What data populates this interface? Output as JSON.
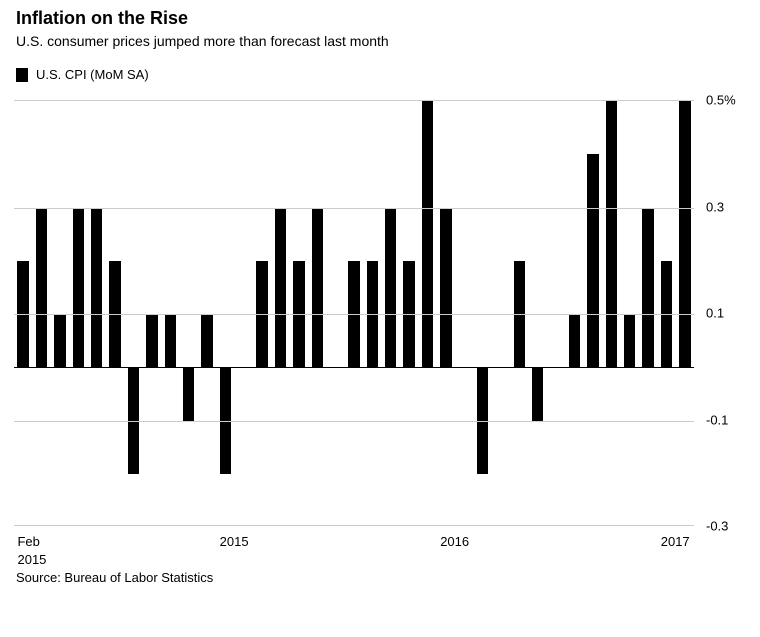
{
  "title": "Inflation on the Rise",
  "subtitle": "U.S. consumer prices jumped more than forecast last month",
  "legend": {
    "swatch_color": "#000000",
    "label": "U.S. CPI (MoM SA)"
  },
  "chart": {
    "type": "bar",
    "bar_color": "#000000",
    "background_color": "#ffffff",
    "grid_color": "#cccccc",
    "zero_color": "#000000",
    "title_fontsize": 18,
    "label_fontsize": 13,
    "y": {
      "min": -0.3,
      "max": 0.5,
      "ticks": [
        {
          "v": 0.5,
          "label": "0.5%"
        },
        {
          "v": 0.3,
          "label": "0.3"
        },
        {
          "v": 0.1,
          "label": "0.1"
        },
        {
          "v": -0.1,
          "label": "-0.1"
        },
        {
          "v": -0.3,
          "label": "-0.3"
        }
      ]
    },
    "x": {
      "ticks": [
        {
          "idx": 0,
          "label": "Feb",
          "sub": "2015"
        },
        {
          "idx": 11,
          "label": "2015"
        },
        {
          "idx": 23,
          "label": "2016"
        },
        {
          "idx": 35,
          "label": "2017"
        }
      ]
    },
    "values": [
      0.2,
      0.3,
      0.1,
      0.3,
      0.3,
      0.2,
      -0.2,
      0.1,
      0.1,
      -0.1,
      0.1,
      -0.2,
      0.0,
      0.2,
      0.3,
      0.2,
      0.3,
      0.0,
      0.2,
      0.2,
      0.3,
      0.2,
      0.5,
      0.3,
      0.0,
      -0.2,
      0.0,
      0.2,
      -0.1,
      0.0,
      0.1,
      0.4,
      0.5,
      0.1,
      0.3,
      0.2,
      0.5
    ],
    "bar_width_ratio": 0.62
  },
  "source": "Source: Bureau of Labor Statistics"
}
